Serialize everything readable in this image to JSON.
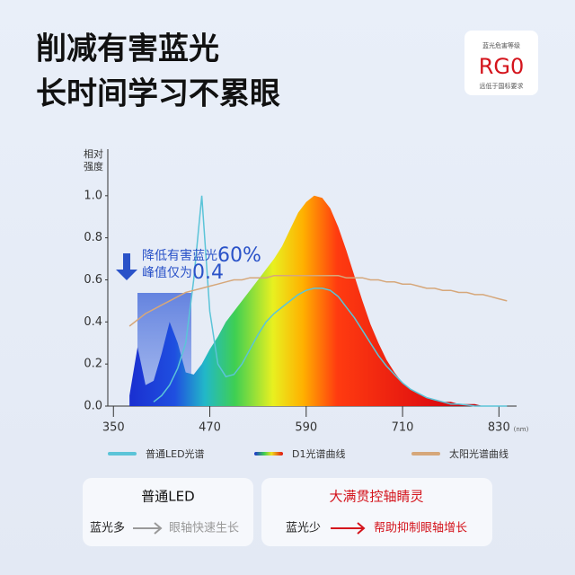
{
  "header": {
    "title_lines": [
      "削减有害蓝光",
      "长时间学习不累眼"
    ]
  },
  "badge": {
    "caption": "蓝光危害等级",
    "grade": "RG0",
    "note": "远低于国标要求"
  },
  "chart_data": {
    "type": "line",
    "y_label_lines": [
      "相对",
      "强度"
    ],
    "x_unit": "(nm)",
    "xlim": [
      343,
      852
    ],
    "ylim": [
      0,
      1.2
    ],
    "xticks": [
      350,
      470,
      590,
      710,
      830
    ],
    "yticks": [
      {
        "value": 0,
        "label": "0.0"
      },
      0.2,
      0.4,
      0.6,
      0.8,
      {
        "value": 1,
        "label": "1.0"
      }
    ],
    "x": [
      370,
      380,
      390,
      400,
      410,
      420,
      430,
      440,
      450,
      460,
      470,
      480,
      490,
      500,
      510,
      520,
      530,
      540,
      550,
      560,
      570,
      580,
      590,
      600,
      610,
      620,
      630,
      640,
      650,
      660,
      670,
      680,
      690,
      700,
      710,
      720,
      730,
      740,
      750,
      760,
      770,
      780,
      790,
      800,
      810,
      820,
      830,
      840
    ],
    "series": [
      {
        "name": "普通LED光谱",
        "color": "#5bc4d8",
        "style": "line",
        "values": [
          null,
          null,
          null,
          0.02,
          0.05,
          0.1,
          0.18,
          0.3,
          0.6,
          1.0,
          0.45,
          0.2,
          0.14,
          0.15,
          0.2,
          0.27,
          0.34,
          0.4,
          0.44,
          0.47,
          0.5,
          0.53,
          0.55,
          0.56,
          0.56,
          0.55,
          0.52,
          0.47,
          0.42,
          0.36,
          0.3,
          0.24,
          0.19,
          0.15,
          0.11,
          0.08,
          0.06,
          0.04,
          0.03,
          0.02,
          0.01,
          0.01,
          0.005,
          0,
          0,
          0,
          0,
          0
        ]
      },
      {
        "name": "D1光谱曲线",
        "color": "rainbow",
        "style": "area",
        "values": [
          0.05,
          0.28,
          0.1,
          0.12,
          0.25,
          0.4,
          0.3,
          0.16,
          0.15,
          0.2,
          0.27,
          0.33,
          0.4,
          0.45,
          0.5,
          0.55,
          0.6,
          0.65,
          0.7,
          0.76,
          0.84,
          0.92,
          0.97,
          1.0,
          0.99,
          0.94,
          0.85,
          0.74,
          0.62,
          0.5,
          0.39,
          0.3,
          0.22,
          0.16,
          0.11,
          0.08,
          0.06,
          0.04,
          0.03,
          0.02,
          0.02,
          0.01,
          0.01,
          0.01,
          0,
          0,
          0,
          0
        ]
      },
      {
        "name": "太阳光谱曲线",
        "color": "#d6a77a",
        "style": "line",
        "values": [
          0.38,
          0.41,
          0.44,
          0.46,
          0.48,
          0.5,
          0.52,
          0.54,
          0.55,
          0.56,
          0.57,
          0.58,
          0.59,
          0.6,
          0.6,
          0.61,
          0.61,
          0.61,
          0.62,
          0.62,
          0.62,
          0.62,
          0.62,
          0.62,
          0.62,
          0.62,
          0.62,
          0.61,
          0.61,
          0.61,
          0.6,
          0.6,
          0.59,
          0.59,
          0.58,
          0.58,
          0.57,
          0.56,
          0.56,
          0.55,
          0.55,
          0.54,
          0.54,
          0.53,
          0.53,
          0.52,
          0.51,
          0.5
        ]
      }
    ],
    "annotation": {
      "line1": "降低有害蓝光",
      "pct": "60%",
      "line2": "峰值仅为",
      "peak": "0.4"
    }
  },
  "compare": {
    "left": {
      "title": "普通LED",
      "from": "蓝光多",
      "to": "眼轴快速生长"
    },
    "right": {
      "title": "大满贯控轴睛灵",
      "from": "蓝光少",
      "to": "帮助抑制眼轴增长"
    }
  }
}
